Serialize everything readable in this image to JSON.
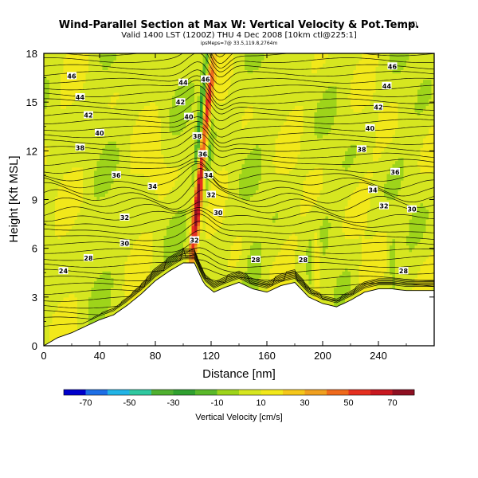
{
  "chart_data": {
    "type": "heatmap",
    "title": "Wind-Parallel Section at Max W: Vertical Velocity & Pot.Temp.",
    "title_marker": "(C)",
    "subtitle": "Valid 1400 LST (1200Z) THU 4 Dec 2008 [10km ctl@225:1]",
    "subtitle2": "ipsMeps=7@ 33.5,119.8,2764m",
    "xlabel": "Distance [nm]",
    "ylabel": "Height [Kft MSL]",
    "xlim": [
      0,
      280
    ],
    "ylim": [
      0,
      18
    ],
    "xticks": [
      "0",
      "40",
      "80",
      "120",
      "160",
      "200",
      "240"
    ],
    "yticks": [
      "0",
      "3",
      "6",
      "9",
      "12",
      "15",
      "18"
    ],
    "colorbar_label": "Vertical Velocity [cm/s]",
    "colorbar_ticks": [
      "-70",
      "-50",
      "-30",
      "-10",
      "10",
      "30",
      "50",
      "70"
    ],
    "colors": {
      "scale": [
        "#0000cc",
        "#1e6fe6",
        "#22b4e6",
        "#30c8a0",
        "#50b030",
        "#30a030",
        "#5ab82a",
        "#9ed41a",
        "#d6e620",
        "#f2e81a",
        "#f5c71a",
        "#f0a020",
        "#ef6a1c",
        "#e53020",
        "#c81820",
        "#8e1022"
      ],
      "terrain": "#ffffff"
    },
    "terrain_kft": [
      [
        0,
        0
      ],
      [
        10,
        0.5
      ],
      [
        20,
        0.8
      ],
      [
        30,
        1.2
      ],
      [
        40,
        1.6
      ],
      [
        50,
        1.9
      ],
      [
        60,
        2.5
      ],
      [
        70,
        3.2
      ],
      [
        80,
        4.0
      ],
      [
        90,
        4.6
      ],
      [
        100,
        5.1
      ],
      [
        108,
        5.1
      ],
      [
        115,
        3.8
      ],
      [
        122,
        3.3
      ],
      [
        130,
        3.6
      ],
      [
        140,
        3.9
      ],
      [
        150,
        3.5
      ],
      [
        160,
        3.3
      ],
      [
        170,
        3.7
      ],
      [
        180,
        3.9
      ],
      [
        190,
        3.0
      ],
      [
        200,
        2.6
      ],
      [
        210,
        2.4
      ],
      [
        220,
        2.8
      ],
      [
        230,
        3.3
      ],
      [
        240,
        3.5
      ],
      [
        250,
        3.5
      ],
      [
        260,
        3.4
      ],
      [
        270,
        3.4
      ],
      [
        280,
        3.4
      ]
    ],
    "isentrope_labels": [
      {
        "x": 20,
        "y": 16.6,
        "text": "46"
      },
      {
        "x": 26,
        "y": 15.3,
        "text": "44"
      },
      {
        "x": 32,
        "y": 14.2,
        "text": "42"
      },
      {
        "x": 40,
        "y": 13.1,
        "text": "40"
      },
      {
        "x": 26,
        "y": 12.2,
        "text": "38"
      },
      {
        "x": 52,
        "y": 10.5,
        "text": "36"
      },
      {
        "x": 78,
        "y": 9.8,
        "text": "34"
      },
      {
        "x": 58,
        "y": 7.9,
        "text": "32"
      },
      {
        "x": 58,
        "y": 6.3,
        "text": "30"
      },
      {
        "x": 32,
        "y": 5.4,
        "text": "28"
      },
      {
        "x": 14,
        "y": 4.6,
        "text": "24"
      },
      {
        "x": 100,
        "y": 16.2,
        "text": "44"
      },
      {
        "x": 98,
        "y": 15.0,
        "text": "42"
      },
      {
        "x": 104,
        "y": 14.1,
        "text": "40"
      },
      {
        "x": 110,
        "y": 12.9,
        "text": "38"
      },
      {
        "x": 114,
        "y": 11.8,
        "text": "36"
      },
      {
        "x": 118,
        "y": 10.5,
        "text": "34"
      },
      {
        "x": 120,
        "y": 9.3,
        "text": "32"
      },
      {
        "x": 125,
        "y": 8.2,
        "text": "30"
      },
      {
        "x": 116,
        "y": 16.4,
        "text": "46"
      },
      {
        "x": 108,
        "y": 6.5,
        "text": "32"
      },
      {
        "x": 152,
        "y": 5.3,
        "text": "28"
      },
      {
        "x": 186,
        "y": 5.3,
        "text": "28"
      },
      {
        "x": 250,
        "y": 17.2,
        "text": "46"
      },
      {
        "x": 246,
        "y": 16.0,
        "text": "44"
      },
      {
        "x": 240,
        "y": 14.7,
        "text": "42"
      },
      {
        "x": 234,
        "y": 13.4,
        "text": "40"
      },
      {
        "x": 228,
        "y": 12.1,
        "text": "38"
      },
      {
        "x": 252,
        "y": 10.7,
        "text": "36"
      },
      {
        "x": 236,
        "y": 9.6,
        "text": "34"
      },
      {
        "x": 244,
        "y": 8.6,
        "text": "32"
      },
      {
        "x": 264,
        "y": 8.4,
        "text": "30"
      },
      {
        "x": 258,
        "y": 4.6,
        "text": "28"
      }
    ]
  }
}
